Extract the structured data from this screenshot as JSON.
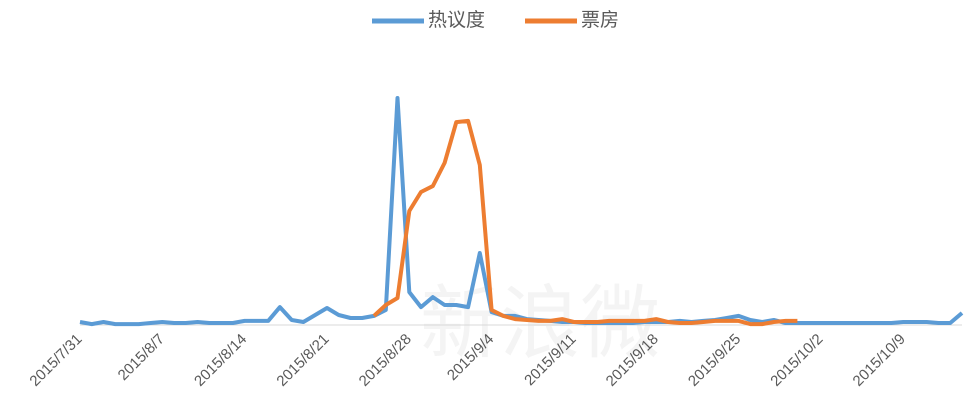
{
  "chart_data": {
    "type": "line",
    "watermark": "新浪微",
    "categories": [
      "2015/7/31",
      null,
      null,
      null,
      null,
      null,
      null,
      "2015/8/7",
      null,
      null,
      null,
      null,
      null,
      null,
      "2015/8/14",
      null,
      null,
      null,
      null,
      null,
      null,
      "2015/8/21",
      null,
      null,
      null,
      null,
      null,
      null,
      "2015/8/28",
      null,
      null,
      null,
      null,
      null,
      null,
      "2015/9/4",
      null,
      null,
      null,
      null,
      null,
      null,
      "2015/9/11",
      null,
      null,
      null,
      null,
      null,
      null,
      "2015/9/18",
      null,
      null,
      null,
      null,
      null,
      null,
      "2015/9/25",
      null,
      null,
      null,
      null,
      null,
      null,
      "2015/10/2",
      null,
      null,
      null,
      null,
      null,
      null,
      "2015/10/9",
      null,
      null,
      null,
      null,
      null
    ],
    "series": [
      {
        "name": "热议度",
        "color": "#5b9bd5",
        "values": [
          1.3,
          0.4,
          1.3,
          0.4,
          0.4,
          0.4,
          0.9,
          1.3,
          0.9,
          0.9,
          1.3,
          0.9,
          0.9,
          0.9,
          1.8,
          1.8,
          1.8,
          7.9,
          2.2,
          1.3,
          4.4,
          7.5,
          4.4,
          3.1,
          3.1,
          4.0,
          6.6,
          100,
          14.5,
          7.9,
          12.3,
          8.8,
          8.8,
          7.9,
          31.7,
          5.7,
          4.0,
          4.0,
          2.6,
          2.2,
          1.8,
          1.3,
          1.3,
          0.9,
          0.9,
          0.9,
          0.9,
          0.9,
          1.3,
          1.3,
          1.3,
          1.8,
          1.3,
          1.8,
          2.2,
          3.1,
          4.0,
          2.2,
          1.3,
          2.2,
          0.9,
          0.9,
          0.9,
          0.9,
          0.9,
          0.9,
          0.9,
          0.9,
          0.9,
          0.9,
          1.3,
          1.3,
          1.3,
          0.9,
          0.9,
          5.3
        ]
      },
      {
        "name": "票房",
        "color": "#ed7d31",
        "values": [
          null,
          null,
          null,
          null,
          null,
          null,
          null,
          null,
          null,
          null,
          null,
          null,
          null,
          null,
          null,
          null,
          null,
          null,
          null,
          null,
          null,
          null,
          null,
          null,
          null,
          4.0,
          8.8,
          11.9,
          50.2,
          58.6,
          61.2,
          71.4,
          89.4,
          89.9,
          70.5,
          6.6,
          4.0,
          2.6,
          2.2,
          1.8,
          1.8,
          2.6,
          1.3,
          1.3,
          1.3,
          1.8,
          1.8,
          1.8,
          1.8,
          2.6,
          1.3,
          0.9,
          0.9,
          1.3,
          1.8,
          1.8,
          1.8,
          0.4,
          0.4,
          1.3,
          1.8,
          1.8,
          null,
          null,
          null,
          null,
          null,
          null,
          null,
          null,
          null,
          null,
          null,
          null,
          null,
          null
        ]
      }
    ],
    "ylim": [
      0,
      100
    ],
    "grid": false,
    "legend": "top"
  }
}
